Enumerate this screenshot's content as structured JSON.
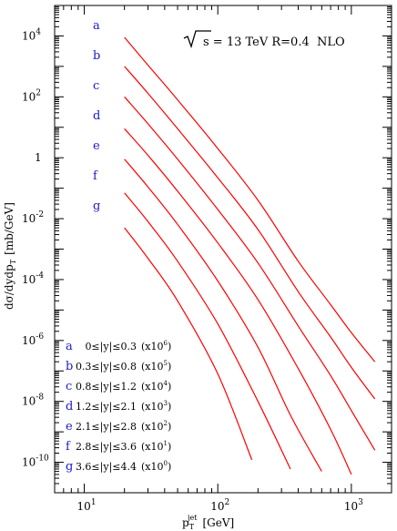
{
  "chart_data": {
    "type": "line",
    "title": "s = 13 TeV R=0.4  NLO",
    "xlabel": {
      "main": "p",
      "sub": "T",
      "sup": "jet",
      "unit": "[GeV]"
    },
    "ylabel": {
      "main": "dσ/dydp",
      "sub": "T",
      "unit": "[mb/GeV]"
    },
    "xscale": "log",
    "yscale": "log",
    "xlim": [
      6,
      2000
    ],
    "ylim": [
      1e-11,
      100000.0
    ],
    "x_ticks": [
      {
        "base": "10",
        "exp": "1"
      },
      {
        "base": "10",
        "exp": "2"
      },
      {
        "base": "10",
        "exp": "3"
      }
    ],
    "y_ticks": [
      {
        "base": "10",
        "exp": "-10"
      },
      {
        "base": "10",
        "exp": "-8"
      },
      {
        "base": "10",
        "exp": "-6"
      },
      {
        "base": "10",
        "exp": "-4"
      },
      {
        "base": "10",
        "exp": "-2"
      },
      {
        "base": "1",
        "exp": ""
      },
      {
        "base": "10",
        "exp": "2"
      },
      {
        "base": "10",
        "exp": "4"
      }
    ],
    "line_color": "#ff0000",
    "letter_color": "#1a1acc",
    "series": [
      {
        "label": "a",
        "range": "0≤|y|≤0.3",
        "scale": "(x10",
        "scale_exp": "6",
        "scale_close": ")",
        "points": [
          [
            20,
            9000
          ],
          [
            30,
            1100
          ],
          [
            50,
            80
          ],
          [
            100,
            2.0
          ],
          [
            200,
            0.04
          ],
          [
            400,
            0.0004
          ],
          [
            700,
            1.5e-05
          ],
          [
            1000,
            1.8e-06
          ],
          [
            1500,
            2e-07
          ]
        ]
      },
      {
        "label": "b",
        "range": "0.3≤|y|≤0.8",
        "scale": "(x10",
        "scale_exp": "5",
        "scale_close": ")",
        "points": [
          [
            20,
            1000
          ],
          [
            30,
            130
          ],
          [
            50,
            9
          ],
          [
            100,
            0.22
          ],
          [
            200,
            0.0044
          ],
          [
            400,
            4e-05
          ],
          [
            700,
            1.3e-06
          ],
          [
            1000,
            1.3e-07
          ],
          [
            1500,
            1.2e-08
          ]
        ]
      },
      {
        "label": "c",
        "range": "0.8≤|y|≤1.2",
        "scale": "(x10",
        "scale_exp": "4",
        "scale_close": ")",
        "points": [
          [
            20,
            100
          ],
          [
            30,
            13
          ],
          [
            50,
            0.9
          ],
          [
            100,
            0.02
          ],
          [
            200,
            0.00035
          ],
          [
            400,
            3e-06
          ],
          [
            700,
            7e-08
          ],
          [
            1000,
            5e-09
          ],
          [
            1500,
            2.5e-10
          ]
        ]
      },
      {
        "label": "d",
        "range": "1.2≤|y|≤2.1",
        "scale": "(x10",
        "scale_exp": "3",
        "scale_close": ")",
        "points": [
          [
            20,
            9
          ],
          [
            30,
            1.2
          ],
          [
            50,
            0.08
          ],
          [
            100,
            0.0016
          ],
          [
            200,
            2.2e-05
          ],
          [
            400,
            1.2e-07
          ],
          [
            700,
            1.2e-09
          ],
          [
            1000,
            4e-11
          ]
        ]
      },
      {
        "label": "e",
        "range": "2.1≤|y|≤2.8",
        "scale": "(x10",
        "scale_exp": "2",
        "scale_close": ")",
        "points": [
          [
            20,
            0.9
          ],
          [
            30,
            0.11
          ],
          [
            50,
            0.0065
          ],
          [
            100,
            9e-05
          ],
          [
            200,
            6e-07
          ],
          [
            350,
            3.5e-09
          ],
          [
            600,
            5e-11
          ]
        ]
      },
      {
        "label": "f",
        "range": "2.8≤|y|≤3.6",
        "scale": "(x10",
        "scale_exp": "1",
        "scale_close": ")",
        "points": [
          [
            20,
            0.07
          ],
          [
            30,
            0.008
          ],
          [
            50,
            0.0004
          ],
          [
            100,
            3.5e-06
          ],
          [
            200,
            1e-08
          ],
          [
            350,
            6e-11
          ]
        ]
      },
      {
        "label": "g",
        "range": "3.6≤|y|≤4.4",
        "scale": "(x10",
        "scale_exp": "0",
        "scale_close": ")",
        "points": [
          [
            20,
            0.005
          ],
          [
            30,
            0.0005
          ],
          [
            50,
            2e-05
          ],
          [
            100,
            8e-08
          ],
          [
            180,
            1.2e-10
          ]
        ]
      }
    ]
  }
}
